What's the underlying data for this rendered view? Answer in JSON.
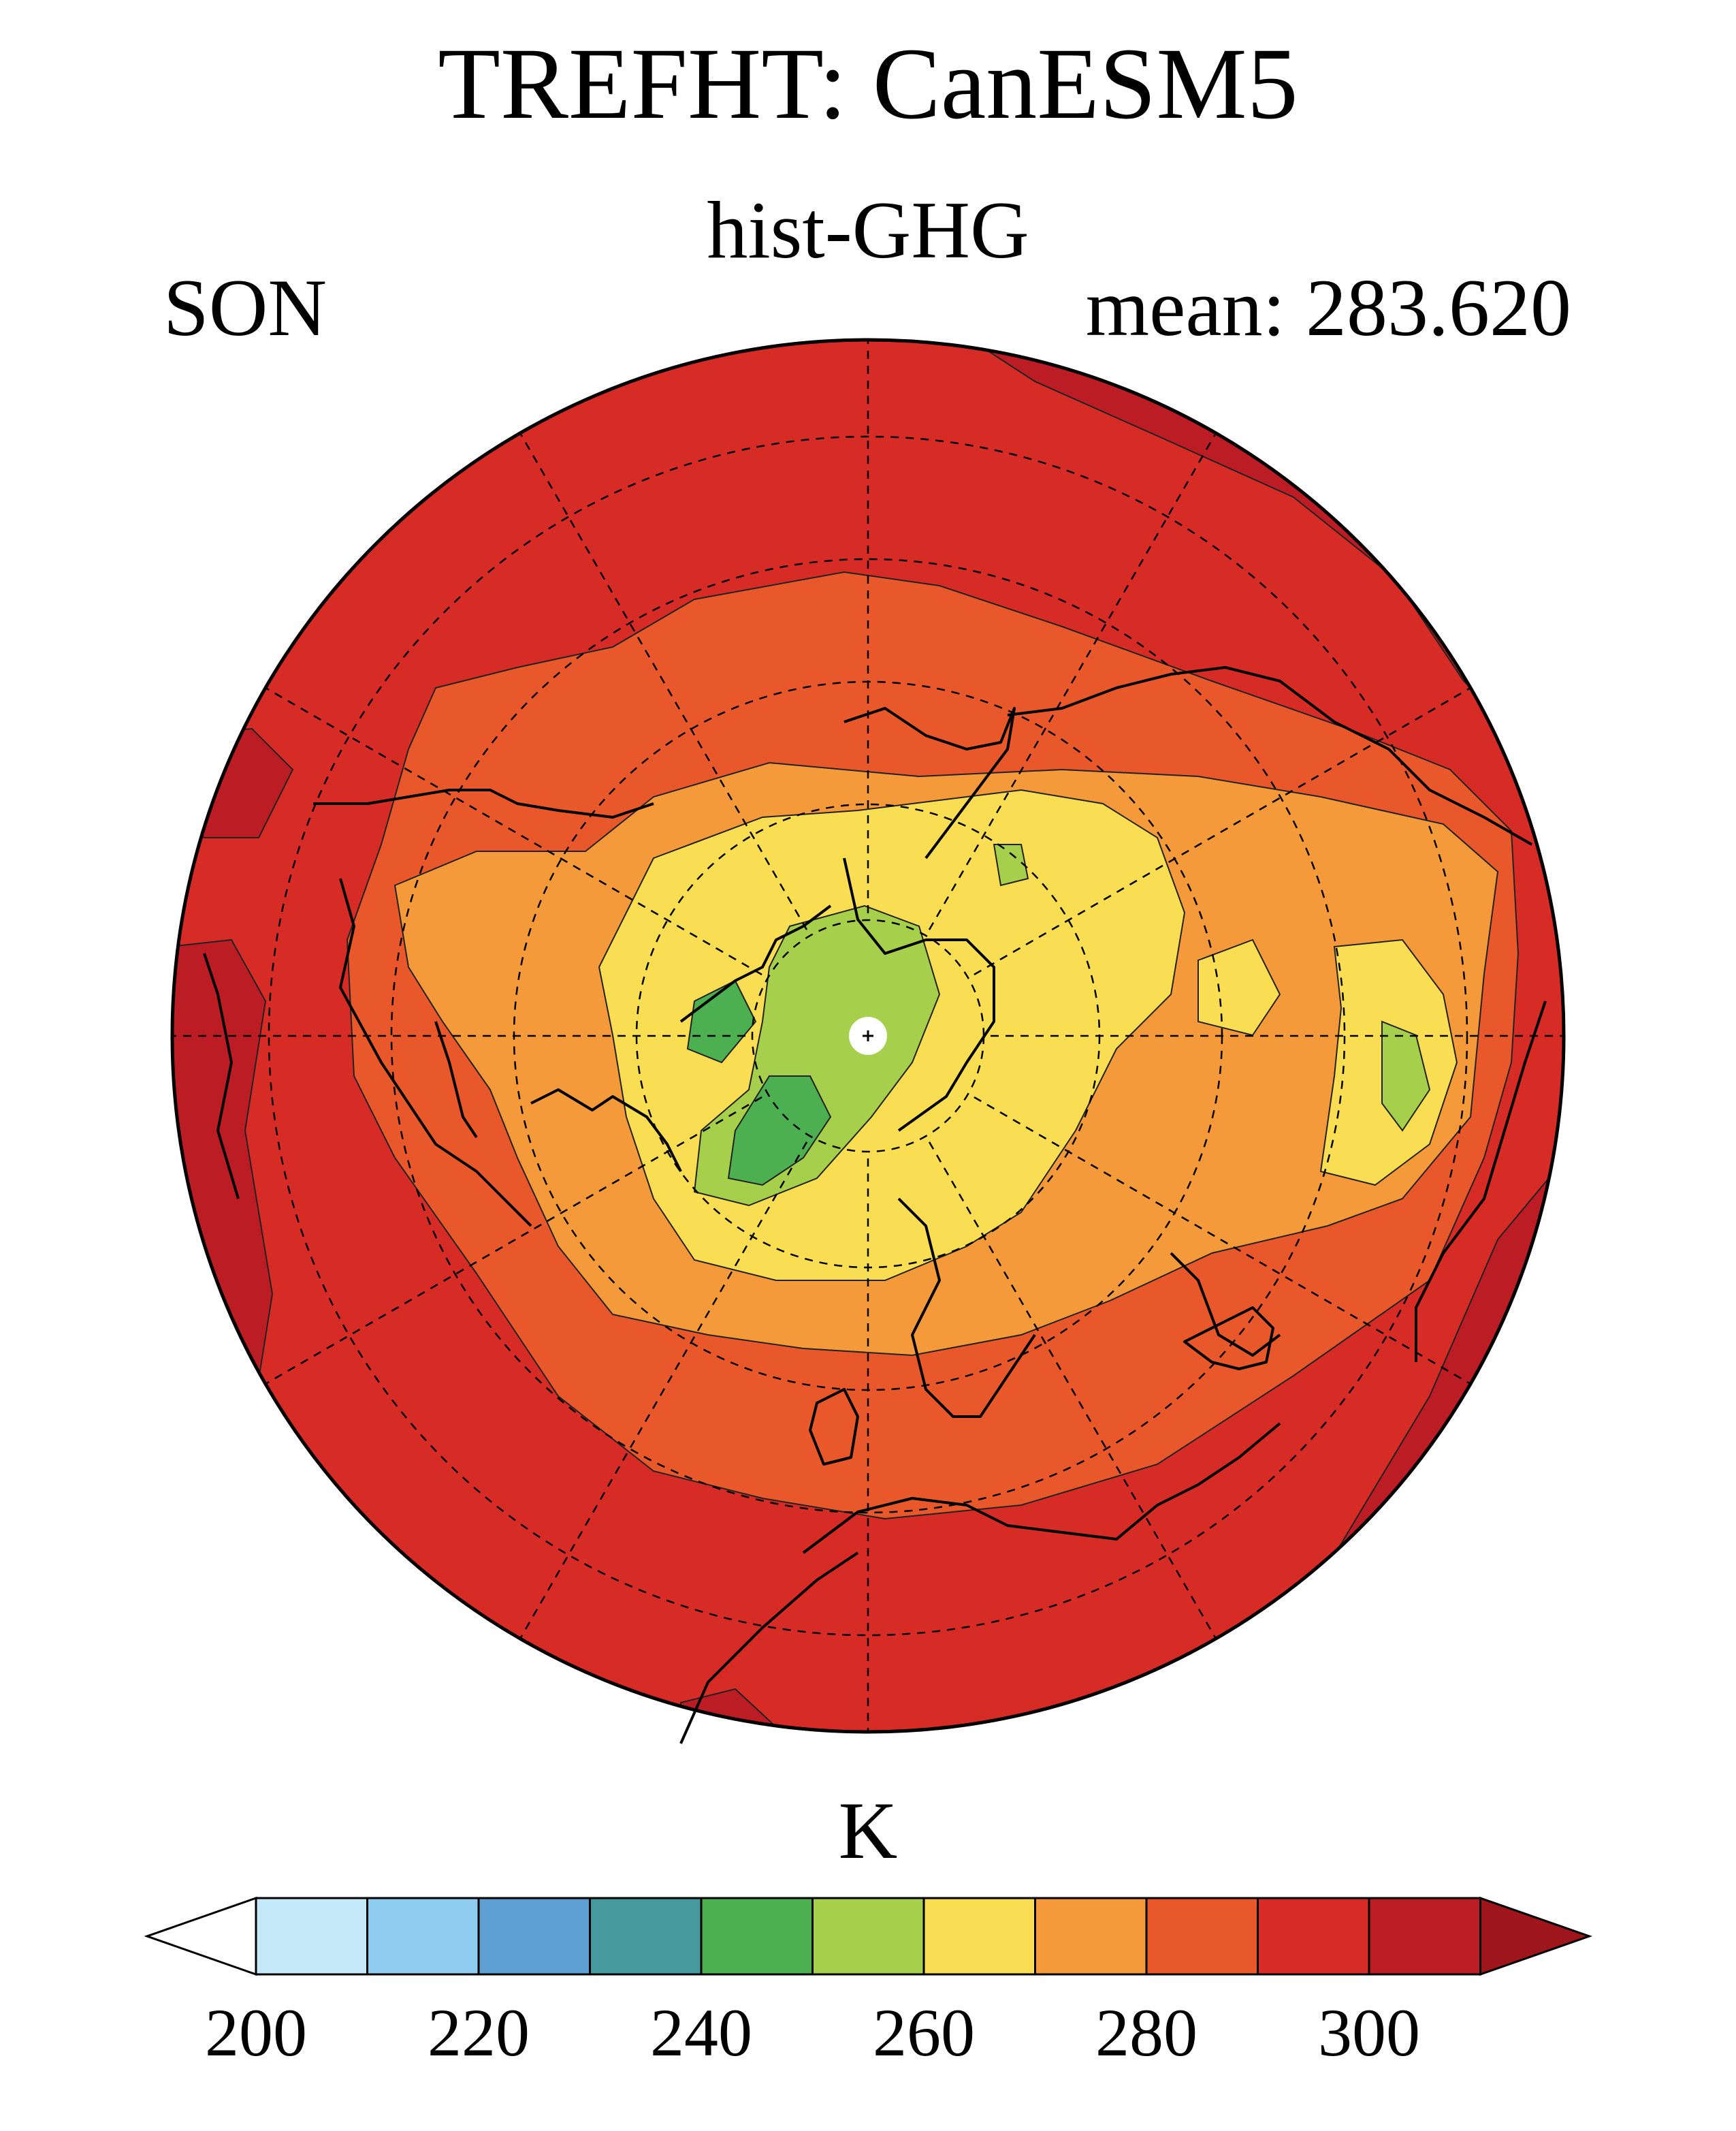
{
  "title": "TREFHT: CanESM5",
  "subtitle": "hist-GHG",
  "season": "SON",
  "mean_label": "mean: 283.620",
  "units": "K",
  "colorbar": {
    "levels": [
      210,
      220,
      230,
      240,
      250,
      260,
      270,
      280,
      290,
      300,
      310
    ],
    "tick_labels": [
      "200",
      "220",
      "240",
      "260",
      "280",
      "300"
    ],
    "colors": [
      "#ffffff",
      "#c6e9f9",
      "#8fcdf0",
      "#5fa0d4",
      "#46999c",
      "#4caf50",
      "#a6cf4b",
      "#f9dd52",
      "#f59a3a",
      "#e8582a",
      "#d72b26",
      "#bc1c24",
      "#9e161c"
    ]
  },
  "map": {
    "projection": "north-polar-stereographic",
    "field_colors": {
      "outer": "#d72b26",
      "band_290": "#e8582a",
      "band_280": "#f59a3a",
      "band_270": "#f9dd52",
      "band_260": "#a6cf4b",
      "band_250": "#4caf50",
      "band_310": "#bc1c24"
    }
  }
}
